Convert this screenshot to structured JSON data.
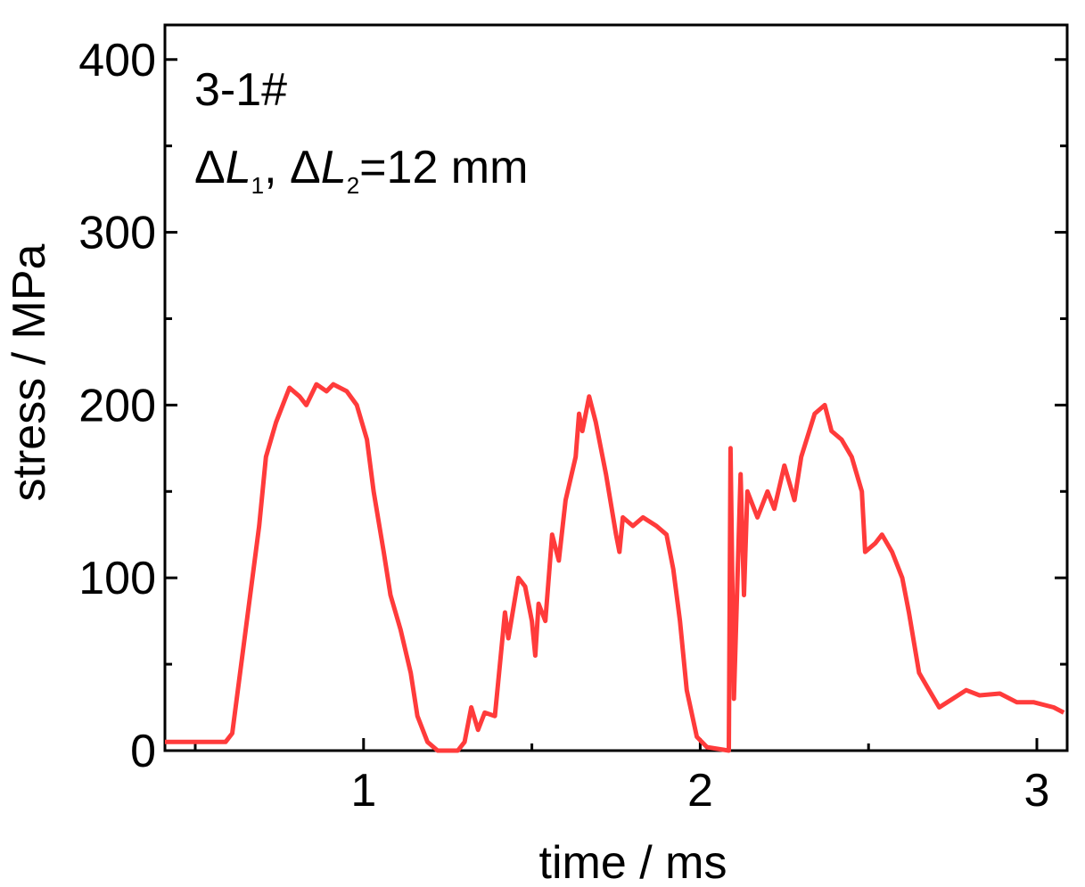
{
  "chart_data": {
    "type": "line",
    "annotation": {
      "line1": "3-1#",
      "line2": [
        "Δ",
        "L",
        "1",
        ", Δ",
        "L",
        "2",
        "=12 mm"
      ]
    },
    "x_label": "time / ms",
    "y_label": "stress / MPa",
    "xlim": [
      0.41,
      3.09
    ],
    "ylim": [
      0,
      420
    ],
    "xticks": [
      1,
      2,
      3
    ],
    "yticks": [
      0,
      100,
      200,
      300,
      400
    ],
    "xminorticks": [
      0.5,
      1.5,
      2.5
    ],
    "yminorticks": [
      50,
      150,
      250,
      350
    ],
    "series": [
      {
        "color": "#ff3b3b",
        "x": [
          0.41,
          0.59,
          0.61,
          0.65,
          0.69,
          0.71,
          0.74,
          0.77,
          0.78,
          0.81,
          0.83,
          0.86,
          0.89,
          0.91,
          0.95,
          0.98,
          1.01,
          1.03,
          1.06,
          1.08,
          1.11,
          1.14,
          1.16,
          1.19,
          1.22,
          1.28,
          1.3,
          1.32,
          1.34,
          1.36,
          1.39,
          1.42,
          1.43,
          1.46,
          1.48,
          1.5,
          1.51,
          1.52,
          1.54,
          1.56,
          1.58,
          1.6,
          1.63,
          1.64,
          1.65,
          1.67,
          1.69,
          1.72,
          1.75,
          1.76,
          1.77,
          1.8,
          1.83,
          1.87,
          1.9,
          1.92,
          1.94,
          1.96,
          1.99,
          2.02,
          2.085,
          2.09,
          2.1,
          2.12,
          2.13,
          2.14,
          2.17,
          2.2,
          2.22,
          2.25,
          2.28,
          2.3,
          2.34,
          2.37,
          2.39,
          2.42,
          2.45,
          2.48,
          2.49,
          2.52,
          2.54,
          2.57,
          2.6,
          2.62,
          2.65,
          2.68,
          2.71,
          2.75,
          2.79,
          2.83,
          2.89,
          2.94,
          2.99,
          3.05,
          3.08
        ],
        "values": [
          5,
          5,
          10,
          70,
          130,
          170,
          190,
          205,
          210,
          205,
          200,
          212,
          208,
          212,
          208,
          200,
          180,
          150,
          115,
          90,
          70,
          45,
          20,
          5,
          0,
          0,
          5,
          25,
          12,
          22,
          20,
          80,
          65,
          100,
          95,
          75,
          55,
          85,
          75,
          125,
          110,
          145,
          170,
          195,
          185,
          205,
          190,
          160,
          125,
          115,
          135,
          130,
          135,
          130,
          125,
          105,
          75,
          35,
          8,
          2,
          0,
          175,
          30,
          160,
          90,
          150,
          135,
          150,
          140,
          165,
          145,
          170,
          195,
          200,
          185,
          180,
          170,
          150,
          115,
          120,
          125,
          115,
          100,
          80,
          45,
          35,
          25,
          30,
          35,
          32,
          33,
          28,
          28,
          25,
          22
        ]
      }
    ]
  }
}
